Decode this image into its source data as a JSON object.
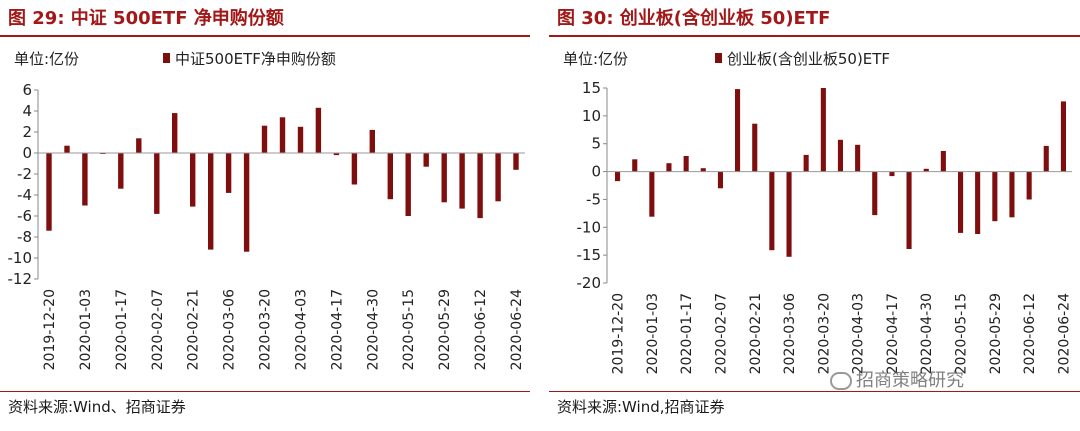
{
  "charts": [
    {
      "title": "图 29:  中证 500ETF 净申购份额",
      "source": "资料来源:Wind、招商证券",
      "chart_data": {
        "type": "bar",
        "title": "图 29:  中证 500ETF 净申购份额",
        "unit_label": "单位:亿份",
        "legend": "中证500ETF净申购份额",
        "legend_position": "top",
        "bar_color": "#7f0f0f",
        "ylim": [
          -12,
          6
        ],
        "yticks": [
          6,
          4,
          2,
          0,
          -2,
          -4,
          -6,
          -8,
          -10,
          -12
        ],
        "tick_labels": [
          "2019-12-20",
          "2020-01-03",
          "2020-01-17",
          "2020-02-07",
          "2020-02-21",
          "2020-03-06",
          "2020-03-20",
          "2020-04-03",
          "2020-04-17",
          "2020-04-30",
          "2020-05-15",
          "2020-05-29",
          "2020-06-12",
          "2020-06-24"
        ],
        "values": [
          -7.4,
          0.7,
          -5.0,
          -0.1,
          -3.4,
          1.4,
          -5.8,
          3.8,
          -5.1,
          -9.2,
          -3.8,
          -9.4,
          2.6,
          3.4,
          2.5,
          4.3,
          -0.2,
          -3.0,
          2.2,
          -4.4,
          -6.0,
          -1.3,
          -4.7,
          -5.3,
          -6.2,
          -4.6,
          -1.6
        ],
        "grid": false
      }
    },
    {
      "title": "图 30:  创业板(含创业板 50)ETF",
      "source": "资料来源:Wind,招商证券",
      "chart_data": {
        "type": "bar",
        "title": "图 30:  创业板(含创业板 50)ETF",
        "unit_label": "单位:亿份",
        "legend": "创业板(含创业板50)ETF",
        "legend_position": "top",
        "bar_color": "#7f0f0f",
        "ylim": [
          -20,
          15
        ],
        "yticks": [
          15,
          10,
          5,
          0,
          -5,
          -10,
          -15,
          -20
        ],
        "tick_labels": [
          "2019-12-20",
          "2020-01-03",
          "2020-01-17",
          "2020-02-07",
          "2020-02-21",
          "2020-03-06",
          "2020-03-20",
          "2020-04-03",
          "2020-04-17",
          "2020-04-30",
          "2020-05-15",
          "2020-05-29",
          "2020-06-12",
          "2020-06-24"
        ],
        "values": [
          -1.7,
          2.2,
          -8.1,
          1.5,
          2.8,
          0.6,
          -3.0,
          14.8,
          8.6,
          -14.1,
          -15.3,
          3.0,
          15.0,
          5.7,
          4.8,
          -7.8,
          -0.8,
          -13.9,
          0.5,
          3.7,
          -11.0,
          -11.2,
          -8.9,
          -8.2,
          -5.0,
          4.6,
          12.6
        ],
        "grid": false
      }
    }
  ],
  "watermark": "招商策略研究"
}
